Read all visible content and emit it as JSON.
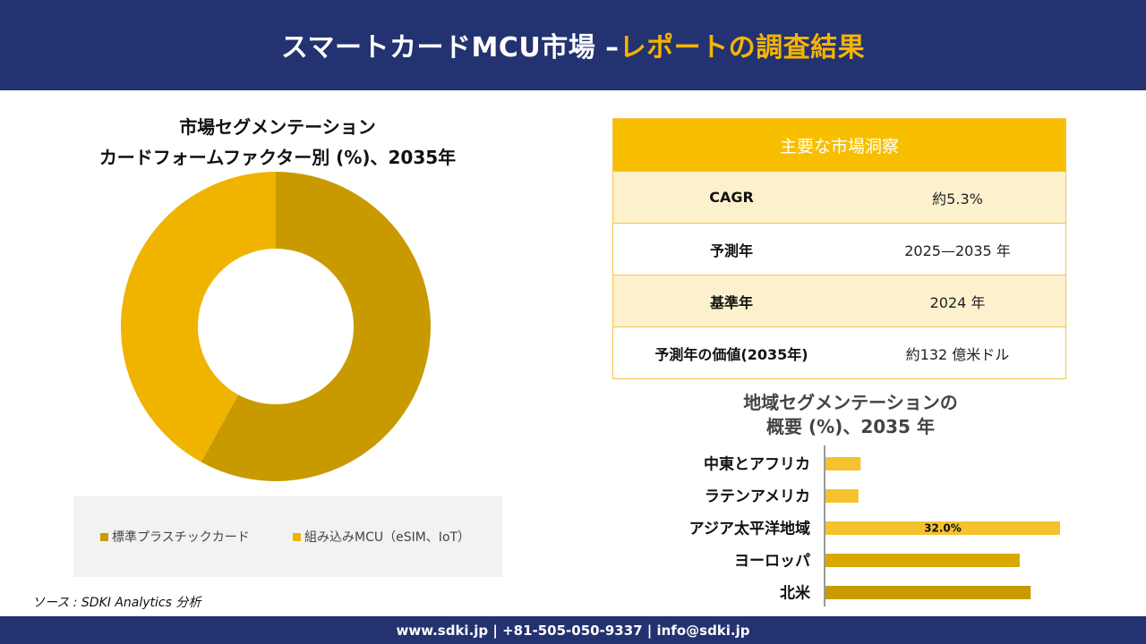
{
  "banner": {
    "title_main": "スマートカードMCU市場 –",
    "title_accent": "レポートの調査結果"
  },
  "colors": {
    "banner_bg": "#233270",
    "accent": "#f4b400"
  },
  "pie_section": {
    "title_line1": "市場セグメンテーション",
    "title_line2": "カードフォームファクター別 (%)、2035年"
  },
  "legend": {
    "item1": "標準プラスチックカード",
    "item2": "組み込みMCU（eSIM、IoT）"
  },
  "insights": {
    "header": "主要な市場洞察",
    "rows": [
      {
        "label": "CAGR",
        "value": "約5.3%"
      },
      {
        "label": "予測年",
        "value": "2025—2035 年"
      },
      {
        "label": "基準年",
        "value": "2024 年"
      },
      {
        "label": "予測年の価値(2035年)",
        "value": "約132 億米ドル"
      }
    ]
  },
  "region_section": {
    "title_line1": "地域セグメンテーションの",
    "title_line2": "概要 (%)、2035 年"
  },
  "source": "ソース : SDKI Analytics 分析",
  "footer": {
    "contact": "www.sdki.jp | +81-505-050-9337 | info@sdki.jp"
  },
  "chart_data": [
    {
      "type": "pie",
      "donut": true,
      "title": "市場セグメンテーション カードフォームファクター別 (%)、2035年",
      "categories": [
        "標準プラスチックカード",
        "組み込みMCU（eSIM、IoT）"
      ],
      "values": [
        58,
        42
      ],
      "colors": [
        "#c99a00",
        "#f0b400"
      ],
      "legend_position": "bottom"
    },
    {
      "type": "bar",
      "orientation": "horizontal",
      "title": "地域セグメンテーションの概要 (%)、2035 年",
      "categories": [
        "中東とアフリカ",
        "ラテンアメリカ",
        "アジア太平洋地域",
        "ヨーロッパ",
        "北米"
      ],
      "values": [
        4.8,
        4.5,
        32.0,
        26.5,
        28.0
      ],
      "data_labels": [
        "",
        "",
        "32.0%",
        "",
        ""
      ],
      "colors": [
        "#f5c22f",
        "#f5c22f",
        "#f5c22f",
        "#d9a800",
        "#c99a00"
      ],
      "xlim": [
        0,
        35
      ],
      "grid": false
    }
  ]
}
